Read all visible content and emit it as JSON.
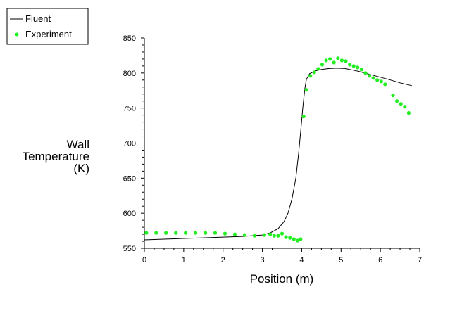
{
  "chart_data": {
    "type": "line",
    "title": "",
    "xlabel": "Position (m)",
    "ylabel_lines": [
      "Wall",
      "Temperature",
      "(K)"
    ],
    "xlim": [
      0,
      7
    ],
    "ylim": [
      550,
      850
    ],
    "x_ticks": [
      0,
      1,
      2,
      3,
      4,
      5,
      6,
      7
    ],
    "y_ticks": [
      550,
      600,
      650,
      700,
      750,
      800,
      850
    ],
    "grid": false,
    "legend_position": "top-left",
    "series": [
      {
        "name": "Fluent",
        "style": "line",
        "color": "#000000",
        "x": [
          0,
          0.5,
          1.0,
          1.5,
          2.0,
          2.5,
          3.0,
          3.2,
          3.4,
          3.55,
          3.65,
          3.75,
          3.85,
          3.92,
          3.98,
          4.03,
          4.08,
          4.12,
          4.2,
          4.35,
          4.5,
          4.7,
          4.9,
          5.1,
          5.4,
          5.8,
          6.2,
          6.5,
          6.8
        ],
        "y": [
          562,
          563,
          564,
          565,
          566,
          567,
          569,
          572,
          578,
          588,
          600,
          620,
          650,
          685,
          720,
          752,
          778,
          791,
          799,
          803,
          805,
          806.5,
          807,
          806.5,
          803,
          797,
          791,
          786,
          782
        ]
      },
      {
        "name": "Experiment",
        "style": "scatter",
        "color": "#22ee22",
        "x": [
          0.05,
          0.3,
          0.55,
          0.8,
          1.05,
          1.3,
          1.55,
          1.8,
          2.05,
          2.3,
          2.55,
          2.8,
          3.05,
          3.2,
          3.3,
          3.4,
          3.5,
          3.6,
          3.7,
          3.8,
          3.9,
          3.97,
          4.05,
          4.12,
          4.22,
          4.32,
          4.42,
          4.52,
          4.62,
          4.72,
          4.82,
          4.92,
          5.02,
          5.12,
          5.22,
          5.32,
          5.42,
          5.52,
          5.62,
          5.72,
          5.82,
          5.92,
          6.02,
          6.12,
          6.32,
          6.42,
          6.52,
          6.62,
          6.72
        ],
        "y": [
          572,
          572,
          572,
          572,
          572,
          572,
          572,
          572,
          571,
          570,
          569,
          568,
          569,
          570,
          568,
          568,
          571,
          566,
          565,
          563,
          561,
          563,
          738,
          776,
          796,
          801,
          806,
          812,
          818,
          820,
          815,
          821,
          818,
          817,
          812,
          810,
          808,
          805,
          800,
          796,
          793,
          790,
          788,
          784,
          768,
          760,
          756,
          752,
          743
        ]
      }
    ]
  }
}
